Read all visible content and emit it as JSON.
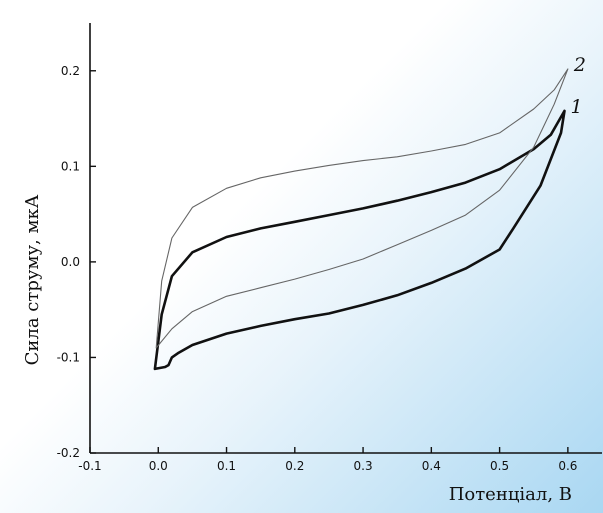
{
  "chart_data": {
    "type": "line",
    "title": "",
    "xlabel": "Потенціал, В",
    "ylabel": "Сила струму, мкА",
    "xlim": [
      -0.1,
      0.65
    ],
    "ylim": [
      -0.2,
      0.25
    ],
    "x_ticks": [
      -0.1,
      0.0,
      0.1,
      0.2,
      0.3,
      0.4,
      0.5,
      0.6
    ],
    "x_tick_labels": [
      "-0.1",
      "0.0",
      "0.1",
      "0.2",
      "0.3",
      "0.4",
      "0.5",
      "0.6"
    ],
    "y_ticks": [
      -0.2,
      -0.1,
      0.0,
      0.1,
      0.2
    ],
    "y_tick_labels": [
      "-0.2",
      "-0.1",
      "0.0",
      "0.1",
      "0.2"
    ],
    "grid": false,
    "series": [
      {
        "label": "1",
        "color": "#111111",
        "x": [
          -0.005,
          0.005,
          0.02,
          0.05,
          0.1,
          0.15,
          0.2,
          0.25,
          0.3,
          0.35,
          0.4,
          0.45,
          0.5,
          0.55,
          0.575,
          0.595,
          0.59,
          0.56,
          0.52,
          0.5,
          0.45,
          0.4,
          0.35,
          0.3,
          0.25,
          0.2,
          0.15,
          0.1,
          0.05,
          0.03,
          0.02,
          0.015,
          0.01,
          -0.005
        ],
        "y": [
          -0.112,
          -0.055,
          -0.015,
          0.01,
          0.026,
          0.035,
          0.042,
          0.049,
          0.056,
          0.064,
          0.073,
          0.083,
          0.097,
          0.118,
          0.133,
          0.158,
          0.135,
          0.08,
          0.035,
          0.013,
          -0.007,
          -0.022,
          -0.035,
          -0.045,
          -0.054,
          -0.06,
          -0.067,
          -0.075,
          -0.087,
          -0.095,
          -0.1,
          -0.108,
          -0.11,
          -0.112
        ]
      },
      {
        "label": "2",
        "color": "#666666",
        "x": [
          -0.003,
          0.005,
          0.02,
          0.05,
          0.1,
          0.15,
          0.2,
          0.25,
          0.3,
          0.35,
          0.4,
          0.45,
          0.5,
          0.55,
          0.58,
          0.6,
          0.58,
          0.55,
          0.5,
          0.45,
          0.4,
          0.35,
          0.3,
          0.25,
          0.2,
          0.15,
          0.1,
          0.05,
          0.02,
          -0.003
        ],
        "y": [
          -0.09,
          -0.02,
          0.025,
          0.057,
          0.077,
          0.088,
          0.095,
          0.101,
          0.106,
          0.11,
          0.116,
          0.123,
          0.135,
          0.16,
          0.18,
          0.202,
          0.165,
          0.12,
          0.075,
          0.049,
          0.033,
          0.018,
          0.003,
          -0.008,
          -0.018,
          -0.027,
          -0.036,
          -0.052,
          -0.07,
          -0.09
        ]
      }
    ]
  }
}
